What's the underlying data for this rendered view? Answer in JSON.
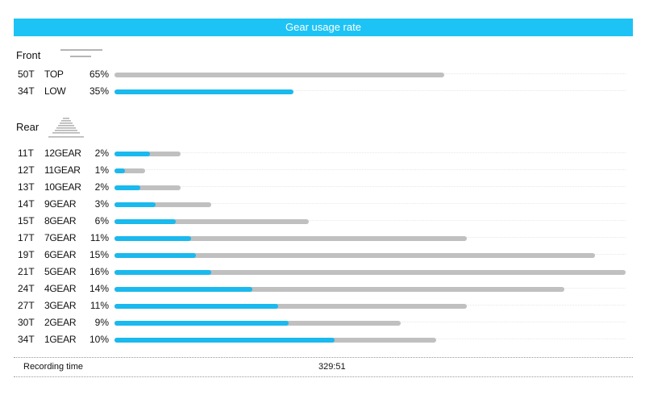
{
  "header": {
    "title": "Gear usage rate"
  },
  "colors": {
    "accent": "#1ec3f5",
    "bar_blue": "#1ab9ee",
    "bar_gray": "#c0c0c0"
  },
  "front": {
    "label": "Front",
    "icon": "chainring-icon",
    "rows": [
      {
        "teeth": "50T",
        "gear": "TOP",
        "percent": "65%",
        "gray_fraction": 0.645,
        "blue_fraction": 0.0
      },
      {
        "teeth": "34T",
        "gear": "LOW",
        "percent": "35%",
        "gray_fraction": 0.0,
        "blue_fraction": 0.35
      }
    ]
  },
  "rear": {
    "label": "Rear",
    "icon": "cassette-icon",
    "rows": [
      {
        "teeth": "11T",
        "gear": "12GEAR",
        "percent": "2%",
        "gray_fraction": 0.13,
        "blue_fraction": 0.07
      },
      {
        "teeth": "12T",
        "gear": "11GEAR",
        "percent": "1%",
        "gray_fraction": 0.06,
        "blue_fraction": 0.02
      },
      {
        "teeth": "13T",
        "gear": "10GEAR",
        "percent": "2%",
        "gray_fraction": 0.13,
        "blue_fraction": 0.05
      },
      {
        "teeth": "14T",
        "gear": "9GEAR",
        "percent": "3%",
        "gray_fraction": 0.19,
        "blue_fraction": 0.08
      },
      {
        "teeth": "15T",
        "gear": "8GEAR",
        "percent": "6%",
        "gray_fraction": 0.38,
        "blue_fraction": 0.12
      },
      {
        "teeth": "17T",
        "gear": "7GEAR",
        "percent": "11%",
        "gray_fraction": 0.69,
        "blue_fraction": 0.15
      },
      {
        "teeth": "19T",
        "gear": "6GEAR",
        "percent": "15%",
        "gray_fraction": 0.94,
        "blue_fraction": 0.16
      },
      {
        "teeth": "21T",
        "gear": "5GEAR",
        "percent": "16%",
        "gray_fraction": 1.0,
        "blue_fraction": 0.19
      },
      {
        "teeth": "24T",
        "gear": "4GEAR",
        "percent": "14%",
        "gray_fraction": 0.88,
        "blue_fraction": 0.27
      },
      {
        "teeth": "27T",
        "gear": "3GEAR",
        "percent": "11%",
        "gray_fraction": 0.69,
        "blue_fraction": 0.32
      },
      {
        "teeth": "30T",
        "gear": "2GEAR",
        "percent": "9%",
        "gray_fraction": 0.56,
        "blue_fraction": 0.34
      },
      {
        "teeth": "34T",
        "gear": "1GEAR",
        "percent": "10%",
        "gray_fraction": 0.63,
        "blue_fraction": 0.43
      }
    ]
  },
  "footer": {
    "label": "Recording time",
    "value": "329:51"
  }
}
